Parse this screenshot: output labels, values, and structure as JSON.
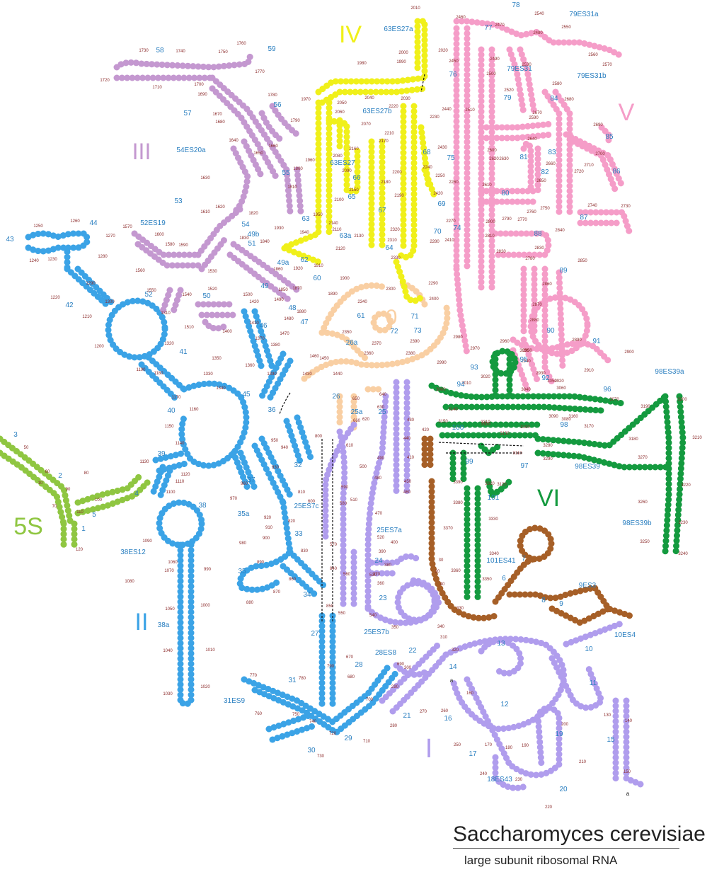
{
  "title": "Saccharomyces cerevisiae",
  "subtitle": "large subunit ribosomal RNA",
  "colors": {
    "domain_0": "#f9cfa3",
    "domain_I": "#b09ded",
    "domain_II": "#3ba3e6",
    "domain_III": "#c498d0",
    "domain_IV": "#f0f01a",
    "domain_V": "#f59dc8",
    "domain_VI": "#149a3f",
    "5S": "#8fc641",
    "bridge": "#a65f27",
    "helix_label": "#2a7fc0",
    "position_label": "#8b2a2a"
  },
  "domains": [
    {
      "key": "0",
      "label": "0",
      "color": "domain_0"
    },
    {
      "key": "I",
      "label": "I",
      "color": "domain_I"
    },
    {
      "key": "II",
      "label": "II",
      "color": "domain_II"
    },
    {
      "key": "III",
      "label": "III",
      "color": "domain_III"
    },
    {
      "key": "IV",
      "label": "IV",
      "color": "domain_IV"
    },
    {
      "key": "V",
      "label": "V",
      "color": "domain_V"
    },
    {
      "key": "VI",
      "label": "VI",
      "color": "domain_VI"
    },
    {
      "key": "5S",
      "label": "5S",
      "color": "5S"
    }
  ],
  "helix_labels": [
    "1",
    "2",
    "3",
    "4",
    "5",
    "6",
    "7",
    "8",
    "9",
    "10",
    "10ES4",
    "11",
    "12",
    "13",
    "14",
    "15",
    "16",
    "17",
    "18ES43",
    "19",
    "20",
    "21",
    "22",
    "23",
    "24",
    "25",
    "25a",
    "25ES7a",
    "25ES7b",
    "25ES7c",
    "26",
    "26a",
    "27",
    "28",
    "28ES8",
    "29",
    "30",
    "31",
    "31ES9",
    "32",
    "33",
    "34",
    "35",
    "35a",
    "36",
    "37",
    "38",
    "38a",
    "38ES12",
    "39",
    "40",
    "41",
    "42",
    "43",
    "44",
    "45",
    "46",
    "47",
    "48",
    "49",
    "49a",
    "49b",
    "50",
    "51",
    "52",
    "52ES19",
    "53",
    "54",
    "54ES20a",
    "55",
    "56",
    "57",
    "58",
    "59",
    "60",
    "61",
    "62",
    "63",
    "63a",
    "63ES27",
    "63ES27a",
    "63ES27b",
    "64",
    "65",
    "66",
    "67",
    "68",
    "69",
    "70",
    "71",
    "72",
    "73",
    "74",
    "75",
    "76",
    "77",
    "78",
    "79",
    "79ES31",
    "79ES31a",
    "79ES31b",
    "80",
    "81",
    "82",
    "83",
    "84",
    "85",
    "86",
    "87",
    "88",
    "89",
    "90",
    "91",
    "92",
    "93",
    "94",
    "95",
    "96",
    "97",
    "98",
    "98ES39",
    "98ES39a",
    "98ES39b",
    "99",
    "100",
    "101",
    "101ES41",
    "9ES3"
  ],
  "position_labels": [
    "10",
    "20",
    "30",
    "40",
    "50",
    "60",
    "70",
    "80",
    "90",
    "100",
    "110",
    "120",
    "130",
    "140",
    "150",
    "160",
    "170",
    "180",
    "190",
    "200",
    "210",
    "220",
    "230",
    "240",
    "250",
    "260",
    "270",
    "280",
    "290",
    "300",
    "310",
    "320",
    "330",
    "340",
    "350",
    "360",
    "370",
    "380",
    "390",
    "400",
    "410",
    "420",
    "430",
    "440",
    "450",
    "460",
    "470",
    "480",
    "490",
    "500",
    "510",
    "520",
    "530",
    "540",
    "550",
    "560",
    "570",
    "580",
    "590",
    "600",
    "610",
    "620",
    "630",
    "640",
    "650",
    "660",
    "670",
    "680",
    "690",
    "700",
    "710",
    "720",
    "730",
    "740",
    "750",
    "760",
    "770",
    "780",
    "790",
    "800",
    "810",
    "820",
    "830",
    "840",
    "850",
    "860",
    "870",
    "880",
    "890",
    "900",
    "910",
    "920",
    "930",
    "940",
    "950",
    "960",
    "970",
    "980",
    "990",
    "1000",
    "1010",
    "1020",
    "1030",
    "1040",
    "1050",
    "1060",
    "1070",
    "1080",
    "1090",
    "1100",
    "1110",
    "1120",
    "1130",
    "1140",
    "1150",
    "1160",
    "1170",
    "1180",
    "1190",
    "1200",
    "1210",
    "1220",
    "1230",
    "1240",
    "1250",
    "1260",
    "1270",
    "1280",
    "1290",
    "1300",
    "1310",
    "1320",
    "1330",
    "1340",
    "1350",
    "1360",
    "1370",
    "1380",
    "1390",
    "1400",
    "1410",
    "1420",
    "1430",
    "1440",
    "1450",
    "1460",
    "1470",
    "1480",
    "1490",
    "1500",
    "1510",
    "1520",
    "1530",
    "1540",
    "1550",
    "1560",
    "1570",
    "1580",
    "1590",
    "1600",
    "1610",
    "1620",
    "1630",
    "1640",
    "1650",
    "1660",
    "1670",
    "1680",
    "1690",
    "1700",
    "1710",
    "1720",
    "1730",
    "1740",
    "1750",
    "1760",
    "1770",
    "1780",
    "1790",
    "1800",
    "1810",
    "1820",
    "1830",
    "1840",
    "1850",
    "1860",
    "1870",
    "1880",
    "1890",
    "1900",
    "1910",
    "1920",
    "1930",
    "1940",
    "1950",
    "1960",
    "1970",
    "1980",
    "1990",
    "2000",
    "2010",
    "2020",
    "2030",
    "2040",
    "2050",
    "2060",
    "2070",
    "2080",
    "2090",
    "2100",
    "2110",
    "2120",
    "2130",
    "2140",
    "2150",
    "2160",
    "2170",
    "2180",
    "2190",
    "2200",
    "2210",
    "2220",
    "2230",
    "2240",
    "2250",
    "2260",
    "2270",
    "2280",
    "2290",
    "2300",
    "2310",
    "2320",
    "2330",
    "2340",
    "2350",
    "2360",
    "2370",
    "2380",
    "2390",
    "2400",
    "2410",
    "2420",
    "2430",
    "2440",
    "2450",
    "2460",
    "2470",
    "2480",
    "2490",
    "2500",
    "2510",
    "2520",
    "2530",
    "2540",
    "2550",
    "2560",
    "2570",
    "2580",
    "2590",
    "2600",
    "2610",
    "2620",
    "2630",
    "2640",
    "2650",
    "2660",
    "2670",
    "2680",
    "2690",
    "2700",
    "2710",
    "2720",
    "2730",
    "2740",
    "2750",
    "2760",
    "2770",
    "2780",
    "2790",
    "2800",
    "2810",
    "2820",
    "2830",
    "2840",
    "2850",
    "2860",
    "2870",
    "2880",
    "2890",
    "2900",
    "2910",
    "2920",
    "2930",
    "2940",
    "2950",
    "2960",
    "2970",
    "2980",
    "2990",
    "3000",
    "3010",
    "3020",
    "3030",
    "3040",
    "3050",
    "3060",
    "3070",
    "3080",
    "3090",
    "3100",
    "3110",
    "3120",
    "3130",
    "3140",
    "3150",
    "3160",
    "3170",
    "3180",
    "3190",
    "3200",
    "3210",
    "3220",
    "3230",
    "3240",
    "3250",
    "3260",
    "3270",
    "3280",
    "3290",
    "3300",
    "3310",
    "3320",
    "3330",
    "3340",
    "3350",
    "3360",
    "3370",
    "3380",
    "3390"
  ],
  "end_labels": [
    "a",
    "a"
  ]
}
